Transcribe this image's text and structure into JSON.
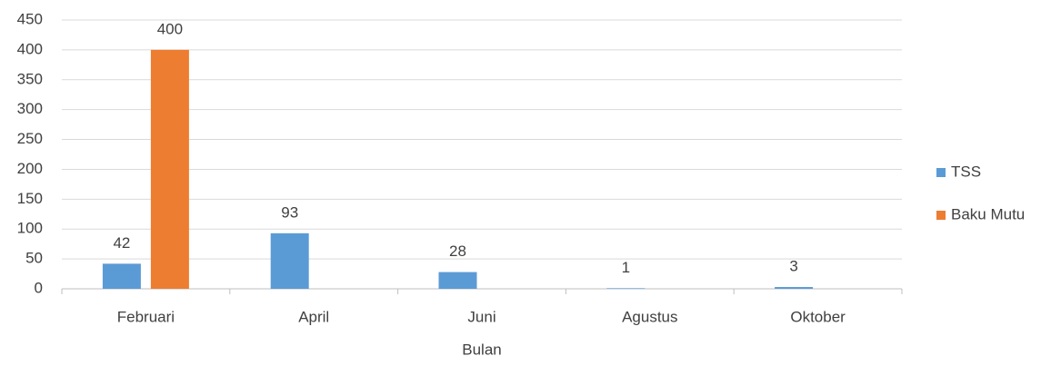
{
  "chart_data": {
    "type": "bar",
    "x_label": "Bulan",
    "categories": [
      "Februari",
      "April",
      "Juni",
      "Agustus",
      "Oktober"
    ],
    "series": [
      {
        "name": "TSS",
        "color": "#5b9bd5",
        "values": [
          42,
          93,
          28,
          1,
          3
        ]
      },
      {
        "name": "Baku Mutu",
        "color": "#ed7d31",
        "values": [
          400,
          null,
          null,
          null,
          null
        ]
      }
    ],
    "ylim": [
      0,
      450
    ],
    "yticks": [
      0,
      50,
      100,
      150,
      200,
      250,
      300,
      350,
      400,
      450
    ],
    "grid": true,
    "legend": "right"
  }
}
